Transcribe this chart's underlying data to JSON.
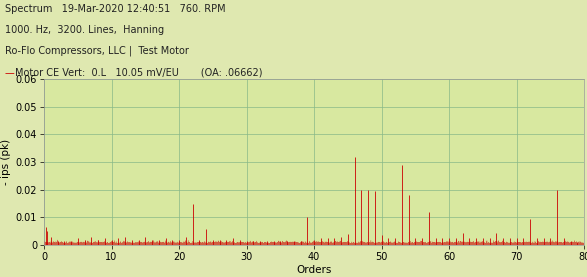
{
  "title_lines": [
    "Spectrum   19-Mar-2020 12:40:51   760. RPM",
    "1000. Hz,  3200. Lines,  Hanning",
    "Ro-Flo Compressors, LLC |  Test Motor",
    "Motor CE Vert:  0.L   10.05 mV/EU       (OA: .06662)"
  ],
  "xlabel": "Orders",
  "ylabel": "- ips (pk)",
  "xlim": [
    0,
    80
  ],
  "ylim": [
    0,
    0.06
  ],
  "yticks": [
    0,
    0.01,
    0.02,
    0.03,
    0.04,
    0.05,
    0.06
  ],
  "xticks": [
    0,
    10,
    20,
    30,
    40,
    50,
    60,
    70,
    80
  ],
  "background_color": "#dfe8b0",
  "header_background": "#dfe8b0",
  "plot_background": "#d8e8a0",
  "grid_color": "#88b888",
  "line_color": "#cc0000",
  "line_width": 0.6,
  "spectrum_peaks": [
    [
      0.3,
      0.0065
    ],
    [
      0.5,
      0.005
    ],
    [
      1.0,
      0.003
    ],
    [
      2.0,
      0.0015
    ],
    [
      3.0,
      0.0015
    ],
    [
      4.0,
      0.0015
    ],
    [
      5.0,
      0.0025
    ],
    [
      6.0,
      0.002
    ],
    [
      7.0,
      0.003
    ],
    [
      8.0,
      0.002
    ],
    [
      9.0,
      0.0025
    ],
    [
      10.0,
      0.002
    ],
    [
      11.0,
      0.0025
    ],
    [
      12.0,
      0.003
    ],
    [
      13.0,
      0.002
    ],
    [
      14.0,
      0.002
    ],
    [
      15.0,
      0.003
    ],
    [
      16.0,
      0.002
    ],
    [
      17.0,
      0.002
    ],
    [
      18.0,
      0.0025
    ],
    [
      19.0,
      0.002
    ],
    [
      20.0,
      0.002
    ],
    [
      21.0,
      0.003
    ],
    [
      22.0,
      0.015
    ],
    [
      23.0,
      0.002
    ],
    [
      24.0,
      0.006
    ],
    [
      25.0,
      0.002
    ],
    [
      26.0,
      0.002
    ],
    [
      27.0,
      0.002
    ],
    [
      28.0,
      0.0025
    ],
    [
      29.0,
      0.002
    ],
    [
      30.0,
      0.0015
    ],
    [
      31.0,
      0.0015
    ],
    [
      32.0,
      0.0015
    ],
    [
      33.0,
      0.0015
    ],
    [
      34.0,
      0.0015
    ],
    [
      35.0,
      0.0015
    ],
    [
      36.0,
      0.0015
    ],
    [
      37.0,
      0.0015
    ],
    [
      38.0,
      0.0015
    ],
    [
      39.0,
      0.01
    ],
    [
      40.0,
      0.002
    ],
    [
      41.0,
      0.0025
    ],
    [
      42.0,
      0.0025
    ],
    [
      43.0,
      0.0025
    ],
    [
      44.0,
      0.003
    ],
    [
      45.0,
      0.004
    ],
    [
      46.0,
      0.032
    ],
    [
      47.0,
      0.02
    ],
    [
      48.0,
      0.02
    ],
    [
      49.0,
      0.0195
    ],
    [
      50.0,
      0.0035
    ],
    [
      51.0,
      0.0025
    ],
    [
      52.0,
      0.0025
    ],
    [
      53.0,
      0.029
    ],
    [
      54.0,
      0.018
    ],
    [
      55.0,
      0.0025
    ],
    [
      56.0,
      0.0025
    ],
    [
      57.0,
      0.012
    ],
    [
      58.0,
      0.0025
    ],
    [
      59.0,
      0.0025
    ],
    [
      60.0,
      0.0025
    ],
    [
      61.0,
      0.0025
    ],
    [
      62.0,
      0.0045
    ],
    [
      63.0,
      0.0025
    ],
    [
      64.0,
      0.0025
    ],
    [
      65.0,
      0.0025
    ],
    [
      66.0,
      0.0025
    ],
    [
      67.0,
      0.0045
    ],
    [
      68.0,
      0.0025
    ],
    [
      69.0,
      0.0025
    ],
    [
      70.0,
      0.0025
    ],
    [
      71.0,
      0.0025
    ],
    [
      72.0,
      0.0095
    ],
    [
      73.0,
      0.0025
    ],
    [
      74.0,
      0.0025
    ],
    [
      75.0,
      0.0025
    ],
    [
      76.0,
      0.02
    ],
    [
      77.0,
      0.0025
    ],
    [
      78.0,
      0.0015
    ],
    [
      79.0,
      0.001
    ]
  ],
  "noise_level": 0.0008,
  "header_fontsize": 7.0,
  "axis_label_fontsize": 7.5,
  "tick_fontsize": 7.0,
  "header_text_color": "#222222",
  "legend_line_color": "#cc0000"
}
